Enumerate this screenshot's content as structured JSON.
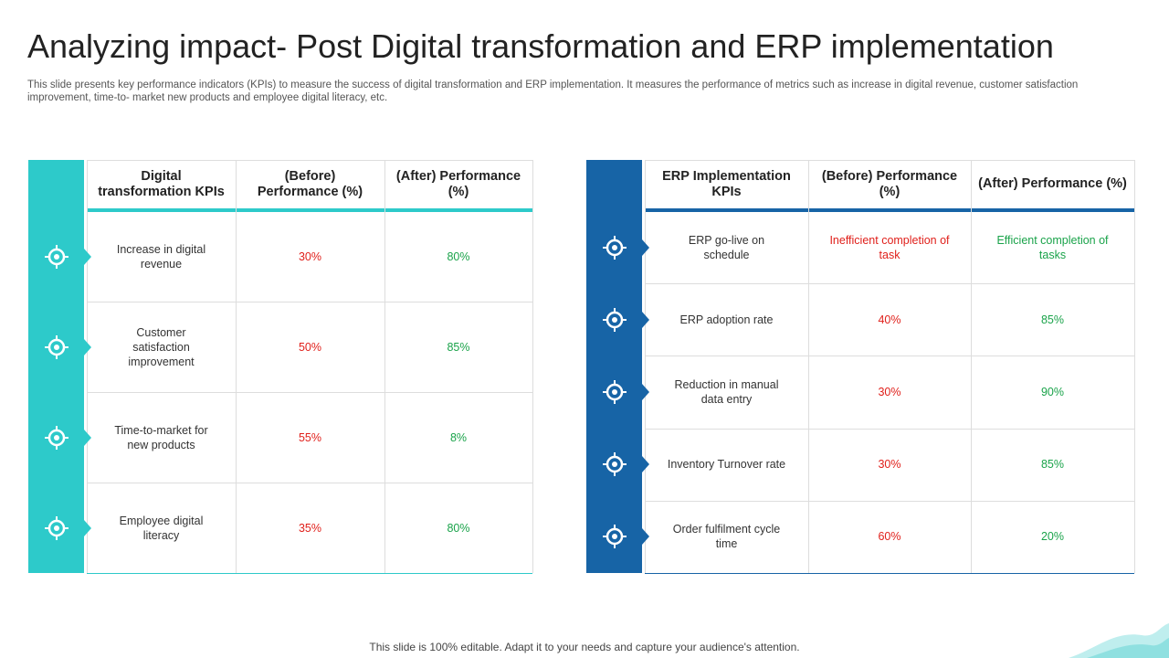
{
  "header": {
    "title": "Analyzing impact- Post Digital transformation and ERP implementation",
    "description": "This slide presents key performance indicators (KPIs) to measure the success of digital transformation and ERP implementation. It measures the performance of metrics such as increase in digital revenue, customer satisfaction improvement, time-to- market new products and employee digital literacy, etc."
  },
  "tables": [
    {
      "headers": [
        "Digital transformation KPIs",
        "(Before) Performance (%)",
        "(After) Performance (%)"
      ],
      "rows": [
        [
          "Increase in digital revenue",
          "30%",
          "80%"
        ],
        [
          "Customer satisfaction improvement",
          "50%",
          "85%"
        ],
        [
          "Time-to-market for new products",
          "55%",
          "8%"
        ],
        [
          "Employee digital literacy",
          "35%",
          "80%"
        ]
      ]
    },
    {
      "headers": [
        "ERP Implementation KPIs",
        "(Before) Performance (%)",
        "(After) Performance (%)"
      ],
      "rows": [
        [
          "ERP go-live on schedule",
          "Inefficient completion of task",
          "Efficient completion of tasks"
        ],
        [
          "ERP adoption rate",
          "40%",
          "85%"
        ],
        [
          "Reduction in manual data entry",
          "30%",
          "90%"
        ],
        [
          "Inventory Turnover rate",
          "30%",
          "85%"
        ],
        [
          "Order fulfilment cycle time",
          "60%",
          "20%"
        ]
      ]
    }
  ],
  "footer": "This slide is 100% editable. Adapt it to your needs and capture your audience's attention."
}
